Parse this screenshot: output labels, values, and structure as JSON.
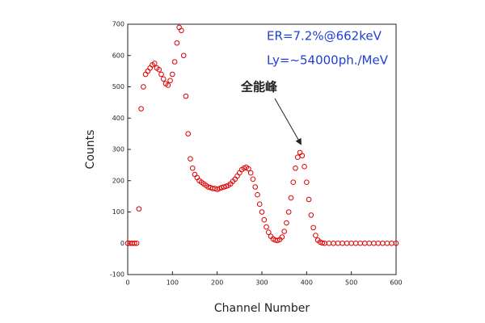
{
  "chart_data": {
    "type": "scatter",
    "x_label": "Channel Number",
    "y_label": "Counts",
    "annotations": [
      "ER=7.2%@662keV",
      "Ly=~54000ph./MeV",
      "全能峰"
    ],
    "color": "#e00000",
    "xlim": [
      0,
      600
    ],
    "xticks": [
      0,
      100,
      200,
      300,
      400,
      500,
      600
    ],
    "ylim": [
      -100,
      700
    ],
    "yticks": [
      -100,
      0,
      100,
      200,
      300,
      400,
      500,
      600,
      700
    ],
    "x": [
      0,
      5,
      10,
      15,
      20,
      25,
      30,
      35,
      40,
      45,
      50,
      55,
      60,
      65,
      70,
      75,
      80,
      85,
      90,
      95,
      100,
      105,
      110,
      115,
      120,
      125,
      130,
      135,
      140,
      145,
      150,
      155,
      160,
      165,
      170,
      175,
      180,
      185,
      190,
      195,
      200,
      205,
      210,
      215,
      220,
      225,
      230,
      235,
      240,
      245,
      250,
      255,
      260,
      265,
      270,
      275,
      280,
      285,
      290,
      295,
      300,
      305,
      310,
      315,
      320,
      325,
      330,
      335,
      340,
      345,
      350,
      355,
      360,
      365,
      370,
      375,
      380,
      385,
      390,
      395,
      400,
      405,
      410,
      415,
      420,
      425,
      430,
      435,
      440,
      450,
      460,
      470,
      480,
      490,
      500,
      510,
      520,
      530,
      540,
      550,
      560,
      570,
      580,
      590,
      600
    ],
    "values": [
      0,
      0,
      0,
      0,
      0,
      110,
      430,
      500,
      540,
      550,
      560,
      570,
      575,
      560,
      555,
      540,
      525,
      510,
      505,
      520,
      540,
      580,
      640,
      690,
      680,
      600,
      470,
      350,
      270,
      240,
      220,
      210,
      200,
      195,
      190,
      185,
      180,
      178,
      175,
      175,
      172,
      175,
      178,
      180,
      182,
      185,
      190,
      198,
      205,
      215,
      225,
      235,
      240,
      243,
      238,
      225,
      205,
      180,
      155,
      125,
      100,
      75,
      52,
      35,
      22,
      14,
      10,
      9,
      12,
      20,
      38,
      65,
      100,
      145,
      195,
      240,
      275,
      290,
      280,
      245,
      195,
      140,
      90,
      50,
      25,
      10,
      4,
      1,
      0,
      0,
      0,
      0,
      0,
      0,
      0,
      0,
      0,
      0,
      0,
      0,
      0,
      0,
      0,
      0,
      0
    ]
  }
}
